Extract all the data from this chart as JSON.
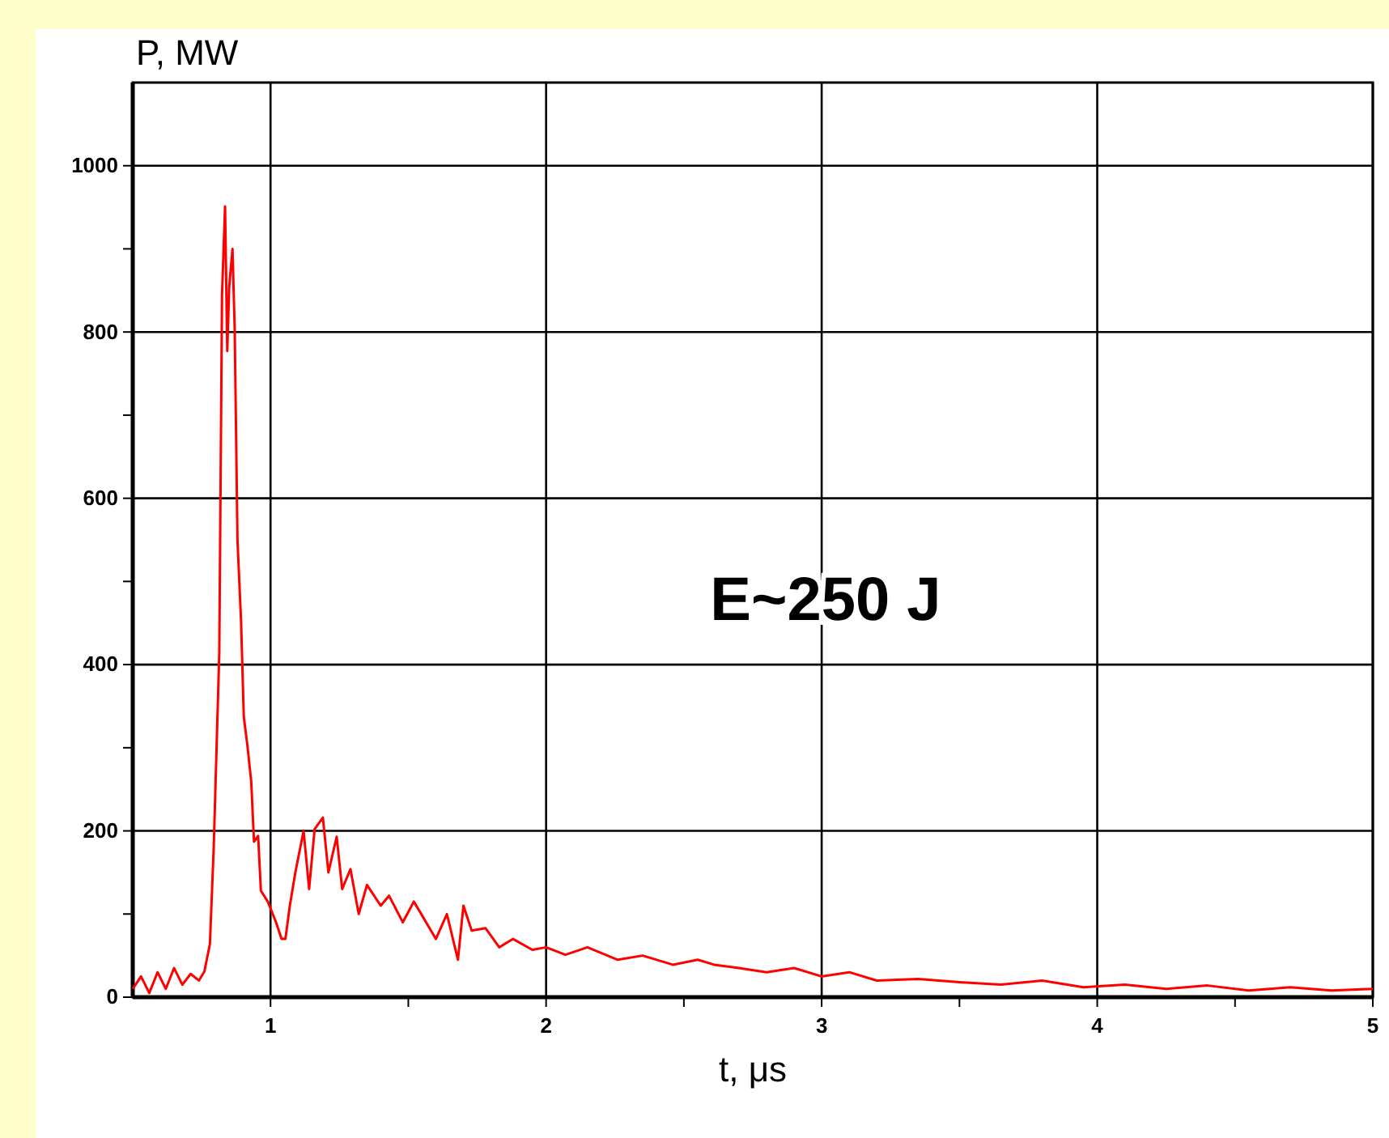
{
  "chart_data": {
    "type": "line",
    "xlabel": "t, μs",
    "ylabel": "P, MW",
    "annotations": [
      "E~250 J"
    ],
    "xlim": [
      0.5,
      5
    ],
    "ylim": [
      0,
      1100
    ],
    "xticks": [
      1,
      {
        "value": 1.5,
        "label": null
      },
      2,
      {
        "value": 2.5,
        "label": null
      },
      3,
      {
        "value": 3.5,
        "label": null
      },
      4,
      {
        "value": 4.5,
        "label": null
      },
      5
    ],
    "yticks": [
      0,
      {
        "value": 100,
        "label": null
      },
      200,
      {
        "value": 300,
        "label": null
      },
      400,
      {
        "value": 500,
        "label": null
      },
      600,
      {
        "value": 700,
        "label": null
      },
      800,
      {
        "value": 900,
        "label": null
      },
      1000
    ],
    "grid": true,
    "line_style": "solid",
    "marker": "none",
    "series": [
      {
        "color": "#ff0000",
        "x": [
          0.5,
          0.53,
          0.56,
          0.59,
          0.62,
          0.65,
          0.68,
          0.71,
          0.74,
          0.76,
          0.78,
          0.794,
          0.804,
          0.814,
          0.824,
          0.835,
          0.843,
          0.85,
          0.862,
          0.87,
          0.88,
          0.893,
          0.903,
          0.916,
          0.93,
          0.94,
          0.955,
          0.965,
          0.99,
          1.02,
          1.04,
          1.054,
          1.07,
          1.09,
          1.12,
          1.14,
          1.16,
          1.19,
          1.21,
          1.24,
          1.26,
          1.29,
          1.32,
          1.35,
          1.4,
          1.43,
          1.48,
          1.52,
          1.6,
          1.64,
          1.68,
          1.7,
          1.73,
          1.78,
          1.83,
          1.88,
          1.95,
          2.0,
          2.07,
          2.15,
          2.26,
          2.35,
          2.46,
          2.55,
          2.61,
          2.7,
          2.8,
          2.9,
          3.0,
          3.1,
          3.2,
          3.35,
          3.5,
          3.65,
          3.8,
          3.95,
          4.1,
          4.25,
          4.4,
          4.55,
          4.7,
          4.85,
          5.0
        ],
        "values": [
          10,
          25,
          5,
          30,
          10,
          35,
          15,
          28,
          20,
          31,
          64,
          181,
          298,
          414,
          845,
          951,
          777,
          854,
          900,
          803,
          550,
          453,
          337,
          303,
          259,
          187,
          194,
          128,
          115,
          90,
          70,
          70,
          110,
          150,
          200,
          130,
          202,
          216,
          150,
          193,
          130,
          154,
          100,
          135,
          110,
          122,
          90,
          115,
          70,
          100,
          45,
          110,
          80,
          83,
          60,
          70,
          57,
          60,
          51,
          60,
          45,
          50,
          39,
          45,
          39,
          35,
          30,
          35,
          25,
          30,
          20,
          22,
          18,
          15,
          20,
          12,
          15,
          10,
          14,
          8,
          12,
          8,
          10
        ]
      }
    ]
  }
}
